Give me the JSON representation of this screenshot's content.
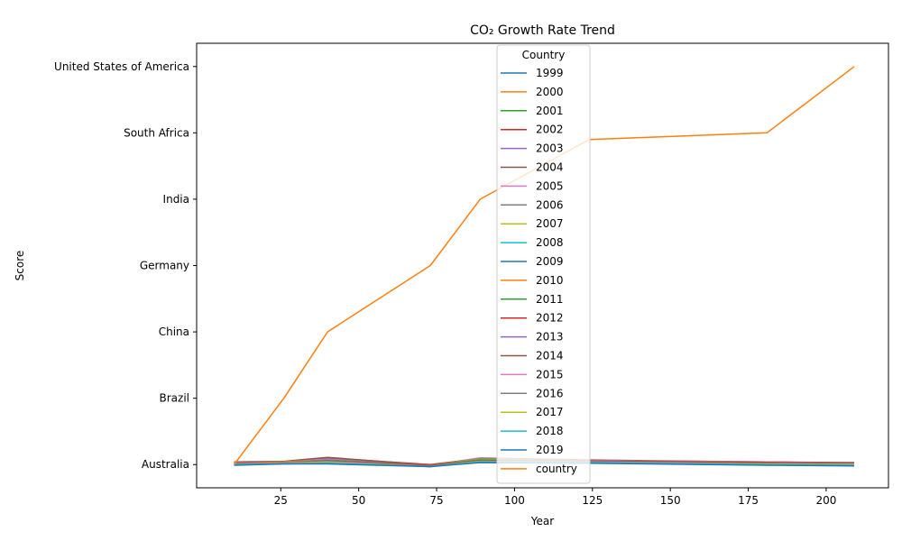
{
  "chart_data": {
    "type": "line",
    "title": "CO₂ Growth Rate Trend",
    "xlabel": "Year",
    "ylabel": "Score",
    "xlim": [
      -2,
      220
    ],
    "ylim": [
      -0.35,
      6.35
    ],
    "x_ticks": [
      25,
      50,
      75,
      100,
      125,
      150,
      175,
      200
    ],
    "y_tick_labels": [
      "Australia",
      "Brazil",
      "China",
      "Germany",
      "India",
      "South Africa",
      "United States of America"
    ],
    "legend_title": "Country",
    "legend_position": "upper center",
    "grid": false,
    "x": [
      10,
      26,
      40,
      73,
      89,
      124,
      181,
      209
    ],
    "series": [
      {
        "name": "1999",
        "color": "#1f77b4",
        "values": [
          0.0,
          0.02,
          0.04,
          -0.02,
          0.06,
          0.04,
          0.02,
          0.01
        ]
      },
      {
        "name": "2000",
        "color": "#ff7f0e",
        "values": [
          0.01,
          0.03,
          0.06,
          -0.01,
          0.07,
          0.05,
          0.03,
          0.02
        ]
      },
      {
        "name": "2001",
        "color": "#2ca02c",
        "values": [
          0.02,
          0.04,
          0.08,
          -0.01,
          0.08,
          0.05,
          0.03,
          0.02
        ]
      },
      {
        "name": "2002",
        "color": "#d62728",
        "values": [
          0.03,
          0.04,
          0.1,
          0.0,
          0.09,
          0.06,
          0.04,
          0.02
        ]
      },
      {
        "name": "2003",
        "color": "#9467bd",
        "values": [
          0.02,
          0.03,
          0.09,
          -0.01,
          0.09,
          0.06,
          0.03,
          0.02
        ]
      },
      {
        "name": "2004",
        "color": "#8c564b",
        "values": [
          0.04,
          0.05,
          0.11,
          -0.01,
          0.1,
          0.07,
          0.04,
          0.03
        ]
      },
      {
        "name": "2005",
        "color": "#e377c2",
        "values": [
          0.03,
          0.04,
          0.08,
          -0.02,
          0.1,
          0.06,
          0.04,
          0.02
        ]
      },
      {
        "name": "2006",
        "color": "#7f7f7f",
        "values": [
          0.03,
          0.04,
          0.07,
          -0.01,
          0.09,
          0.06,
          0.03,
          0.03
        ]
      },
      {
        "name": "2007",
        "color": "#bcbd22",
        "values": [
          0.02,
          0.04,
          0.06,
          -0.01,
          0.08,
          0.05,
          0.03,
          0.02
        ]
      },
      {
        "name": "2008",
        "color": "#17becf",
        "values": [
          0.01,
          0.03,
          0.05,
          -0.02,
          0.07,
          0.05,
          0.02,
          0.01
        ]
      },
      {
        "name": "2009",
        "color": "#1f77b4",
        "values": [
          0.0,
          0.02,
          0.03,
          -0.03,
          0.05,
          0.04,
          0.01,
          0.0
        ]
      },
      {
        "name": "2010",
        "color": "#ff7f0e",
        "values": [
          0.02,
          0.04,
          0.06,
          -0.01,
          0.07,
          0.05,
          0.03,
          0.02
        ]
      },
      {
        "name": "2011",
        "color": "#2ca02c",
        "values": [
          0.02,
          0.03,
          0.06,
          -0.01,
          0.07,
          0.05,
          0.03,
          0.02
        ]
      },
      {
        "name": "2012",
        "color": "#d62728",
        "values": [
          0.02,
          0.03,
          0.05,
          -0.01,
          0.06,
          0.05,
          0.03,
          0.02
        ]
      },
      {
        "name": "2013",
        "color": "#9467bd",
        "values": [
          0.01,
          0.03,
          0.05,
          -0.02,
          0.06,
          0.04,
          0.02,
          0.01
        ]
      },
      {
        "name": "2014",
        "color": "#8c564b",
        "values": [
          0.01,
          0.02,
          0.04,
          -0.02,
          0.06,
          0.04,
          0.02,
          0.01
        ]
      },
      {
        "name": "2015",
        "color": "#e377c2",
        "values": [
          0.01,
          0.02,
          0.04,
          -0.02,
          0.05,
          0.04,
          0.01,
          0.01
        ]
      },
      {
        "name": "2016",
        "color": "#7f7f7f",
        "values": [
          0.0,
          0.02,
          0.03,
          -0.02,
          0.05,
          0.03,
          0.01,
          0.0
        ]
      },
      {
        "name": "2017",
        "color": "#bcbd22",
        "values": [
          0.0,
          0.02,
          0.03,
          -0.03,
          0.05,
          0.03,
          0.01,
          0.0
        ]
      },
      {
        "name": "2018",
        "color": "#17becf",
        "values": [
          0.0,
          0.01,
          0.02,
          -0.03,
          0.04,
          0.03,
          0.0,
          -0.01
        ]
      },
      {
        "name": "2019",
        "color": "#1f77b4",
        "values": [
          -0.01,
          0.01,
          0.01,
          -0.03,
          0.03,
          0.02,
          -0.01,
          -0.02
        ]
      },
      {
        "name": "country",
        "color": "#ff7f0e",
        "values": [
          0,
          1,
          2,
          3,
          4,
          4.9,
          5,
          6
        ]
      }
    ]
  }
}
